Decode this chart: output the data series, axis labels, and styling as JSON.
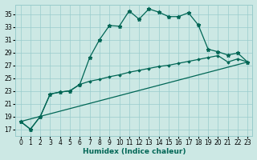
{
  "xlabel": "Humidex (Indice chaleur)",
  "bg_color": "#cce8e4",
  "grid_color": "#99cccc",
  "line_color": "#006655",
  "xlim": [
    -0.5,
    23.5
  ],
  "ylim": [
    16.0,
    36.5
  ],
  "yticks": [
    17,
    19,
    21,
    23,
    25,
    27,
    29,
    31,
    33,
    35
  ],
  "xticks": [
    0,
    1,
    2,
    3,
    4,
    5,
    6,
    7,
    8,
    9,
    10,
    11,
    12,
    13,
    14,
    15,
    16,
    17,
    18,
    19,
    20,
    21,
    22,
    23
  ],
  "line1_x": [
    0,
    1,
    2,
    3,
    4,
    5,
    6,
    7,
    8,
    9,
    10,
    11,
    12,
    13,
    14,
    15,
    16,
    17,
    18,
    19,
    20,
    21,
    22,
    23
  ],
  "line1_y": [
    18.2,
    17.0,
    19.0,
    22.5,
    22.8,
    23.0,
    24.0,
    28.2,
    31.0,
    33.2,
    33.1,
    35.5,
    34.2,
    35.8,
    35.3,
    34.6,
    34.6,
    35.2,
    33.3,
    29.5,
    29.1,
    28.6,
    28.9,
    27.5
  ],
  "line2_x": [
    0,
    1,
    2,
    3,
    4,
    5,
    6,
    7,
    8,
    9,
    10,
    11,
    12,
    13,
    14,
    15,
    16,
    17,
    18,
    19,
    20,
    21,
    22,
    23
  ],
  "line2_y": [
    18.2,
    17.0,
    19.0,
    22.5,
    22.8,
    23.0,
    24.0,
    24.5,
    24.8,
    25.2,
    25.5,
    25.9,
    26.2,
    26.5,
    26.8,
    27.0,
    27.3,
    27.6,
    27.9,
    28.2,
    28.5,
    27.5,
    28.0,
    27.5
  ],
  "line3_x": [
    0,
    23
  ],
  "line3_y": [
    18.2,
    27.5
  ]
}
